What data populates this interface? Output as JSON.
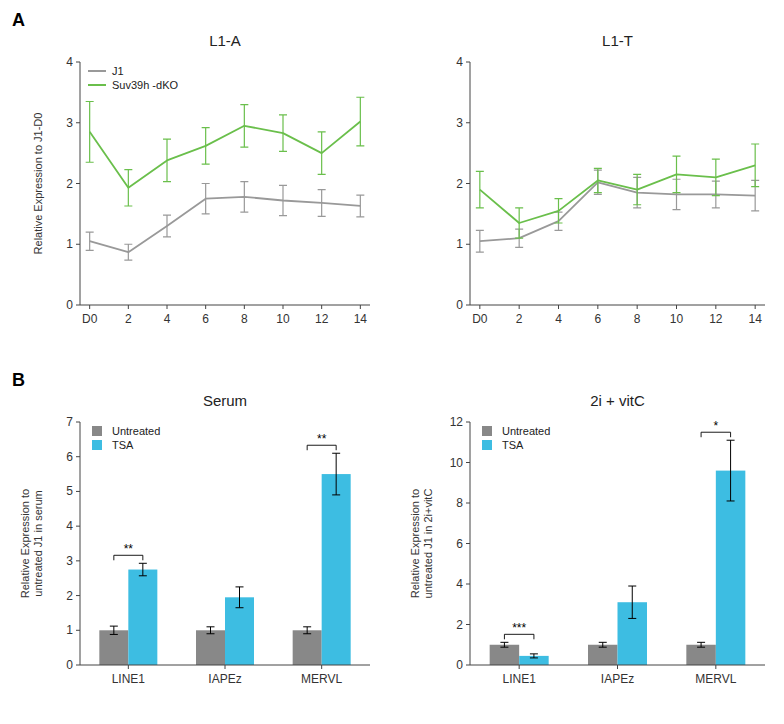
{
  "chart_data": [
    {
      "type": "line",
      "title": "L1-A",
      "y_label": "Relative Expression to J1-D0",
      "x": [
        0,
        2,
        4,
        6,
        8,
        10,
        12,
        14
      ],
      "xlim": [
        -0.5,
        14.5
      ],
      "xticks": [
        {
          "value": 0,
          "label": "D0"
        },
        2,
        4,
        6,
        8,
        10,
        12,
        14
      ],
      "ylim": [
        0,
        4
      ],
      "yticks": [
        0,
        1,
        2,
        3,
        4
      ],
      "grid": false,
      "legend": "upper left",
      "series": [
        {
          "name": "J1",
          "color": "#999999",
          "values": [
            1.05,
            0.87,
            1.3,
            1.75,
            1.78,
            1.72,
            1.68,
            1.63
          ],
          "errors": [
            0.15,
            0.13,
            0.18,
            0.25,
            0.25,
            0.25,
            0.22,
            0.18
          ]
        },
        {
          "name": "Suv39h -dKO",
          "color": "#6abf4b",
          "values": [
            2.85,
            1.93,
            2.38,
            2.62,
            2.95,
            2.83,
            2.5,
            3.02
          ],
          "errors": [
            0.5,
            0.3,
            0.35,
            0.3,
            0.35,
            0.3,
            0.35,
            0.4
          ]
        }
      ],
      "annotations": [
        {
          "text": "A"
        }
      ]
    },
    {
      "type": "line",
      "title": "L1-T",
      "x": [
        0,
        2,
        4,
        6,
        8,
        10,
        12,
        14
      ],
      "xlim": [
        -0.5,
        14.5
      ],
      "xticks": [
        {
          "value": 0,
          "label": "D0"
        },
        2,
        4,
        6,
        8,
        10,
        12,
        14
      ],
      "ylim": [
        0,
        4
      ],
      "yticks": [
        0,
        1,
        2,
        3,
        4
      ],
      "grid": false,
      "series": [
        {
          "name": "J1",
          "color": "#999999",
          "values": [
            1.05,
            1.1,
            1.38,
            2.02,
            1.85,
            1.82,
            1.82,
            1.8
          ],
          "errors": [
            0.18,
            0.15,
            0.15,
            0.2,
            0.25,
            0.25,
            0.22,
            0.25
          ]
        },
        {
          "name": "Suv39h -dKO",
          "color": "#6abf4b",
          "values": [
            1.9,
            1.35,
            1.55,
            2.05,
            1.9,
            2.15,
            2.1,
            2.3
          ],
          "errors": [
            0.3,
            0.25,
            0.2,
            0.2,
            0.25,
            0.3,
            0.3,
            0.35
          ]
        }
      ]
    },
    {
      "type": "bar",
      "title": "Serum",
      "y_label": "Relative Expression to\nuntreated J1 in serum",
      "categories": [
        "LINE1",
        "IAPEz",
        "MERVL"
      ],
      "ylim": [
        0,
        7
      ],
      "yticks": [
        0,
        1,
        2,
        3,
        4,
        5,
        6,
        7
      ],
      "grid": false,
      "legend": "upper left",
      "series": [
        {
          "name": "Untreated",
          "color": "#888888",
          "values": [
            1.0,
            1.0,
            1.0
          ],
          "errors": [
            0.12,
            0.1,
            0.1
          ]
        },
        {
          "name": "TSA",
          "color": "#3dbde2",
          "values": [
            2.75,
            1.95,
            5.5
          ],
          "errors": [
            0.18,
            0.3,
            0.6
          ]
        }
      ],
      "annotations": [
        {
          "text": "B"
        },
        {
          "text": "**",
          "category": "LINE1"
        },
        {
          "text": "**",
          "category": "MERVL"
        }
      ]
    },
    {
      "type": "bar",
      "title": "2i + vitC",
      "y_label": "Relative Expression to\nuntreated J1 in 2i+vitC",
      "categories": [
        "LINE1",
        "IAPEz",
        "MERVL"
      ],
      "ylim": [
        0,
        12
      ],
      "yticks": [
        0,
        2,
        4,
        6,
        8,
        10,
        12
      ],
      "grid": false,
      "legend": "upper left",
      "series": [
        {
          "name": "Untreated",
          "color": "#888888",
          "values": [
            1.0,
            1.0,
            1.0
          ],
          "errors": [
            0.12,
            0.12,
            0.12
          ]
        },
        {
          "name": "TSA",
          "color": "#3dbde2",
          "values": [
            0.45,
            3.1,
            9.6
          ],
          "errors": [
            0.1,
            0.8,
            1.5
          ]
        }
      ],
      "annotations": [
        {
          "text": "***",
          "category": "LINE1"
        },
        {
          "text": "*",
          "category": "MERVL"
        }
      ]
    }
  ]
}
